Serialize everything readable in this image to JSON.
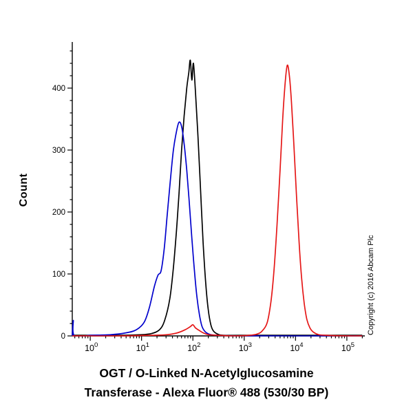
{
  "chart_data": {
    "type": "line",
    "title_line1": "OGT / O-Linked N-Acetylglucosamine",
    "title_line2": "Transferase - Alexa Fluor® 488 (530/30 BP)",
    "ylabel": "Count",
    "copyright": "Copyright (c) 2016 Abcam Plc",
    "x_scale": "log10",
    "x_tick_exponents": [
      0,
      1,
      2,
      3,
      4,
      5
    ],
    "xlim_log": [
      -0.35,
      5.35
    ],
    "y_ticks": [
      0,
      100,
      200,
      300,
      400
    ],
    "y_minor_step": 20,
    "ylim": [
      0,
      470
    ],
    "grid": false,
    "legend": "none",
    "axis_color": "#000000",
    "series": [
      {
        "name": "black-curve",
        "color": "#000000",
        "points": [
          [
            -0.35,
            1
          ],
          [
            0,
            1
          ],
          [
            0.6,
            1
          ],
          [
            1.0,
            2
          ],
          [
            1.2,
            4
          ],
          [
            1.35,
            10
          ],
          [
            1.45,
            25
          ],
          [
            1.55,
            60
          ],
          [
            1.62,
            110
          ],
          [
            1.68,
            170
          ],
          [
            1.73,
            230
          ],
          [
            1.78,
            300
          ],
          [
            1.83,
            355
          ],
          [
            1.88,
            400
          ],
          [
            1.92,
            425
          ],
          [
            1.95,
            445
          ],
          [
            1.98,
            413
          ],
          [
            2.01,
            440
          ],
          [
            2.05,
            395
          ],
          [
            2.1,
            320
          ],
          [
            2.15,
            235
          ],
          [
            2.2,
            150
          ],
          [
            2.25,
            85
          ],
          [
            2.3,
            42
          ],
          [
            2.35,
            18
          ],
          [
            2.4,
            8
          ],
          [
            2.48,
            3
          ],
          [
            2.6,
            1
          ],
          [
            3.0,
            1
          ],
          [
            4.0,
            1
          ],
          [
            5.0,
            1
          ],
          [
            5.3,
            1
          ]
        ]
      },
      {
        "name": "blue-curve",
        "color": "#0000cc",
        "points": [
          [
            -0.35,
            0
          ],
          [
            -0.33,
            25
          ],
          [
            -0.31,
            0
          ],
          [
            0,
            1
          ],
          [
            0.4,
            2
          ],
          [
            0.7,
            5
          ],
          [
            0.9,
            10
          ],
          [
            1.05,
            22
          ],
          [
            1.15,
            45
          ],
          [
            1.25,
            80
          ],
          [
            1.32,
            98
          ],
          [
            1.38,
            105
          ],
          [
            1.44,
            140
          ],
          [
            1.5,
            195
          ],
          [
            1.56,
            250
          ],
          [
            1.62,
            300
          ],
          [
            1.68,
            330
          ],
          [
            1.73,
            345
          ],
          [
            1.78,
            338
          ],
          [
            1.83,
            310
          ],
          [
            1.88,
            268
          ],
          [
            1.93,
            215
          ],
          [
            1.98,
            158
          ],
          [
            2.03,
            105
          ],
          [
            2.08,
            62
          ],
          [
            2.13,
            33
          ],
          [
            2.18,
            15
          ],
          [
            2.25,
            6
          ],
          [
            2.35,
            2
          ],
          [
            2.5,
            1
          ],
          [
            3.0,
            0
          ],
          [
            5.3,
            0
          ]
        ]
      },
      {
        "name": "red-curve",
        "color": "#e51616",
        "points": [
          [
            -0.35,
            0
          ],
          [
            0.5,
            0
          ],
          [
            1.2,
            1
          ],
          [
            1.5,
            2
          ],
          [
            1.7,
            5
          ],
          [
            1.85,
            10
          ],
          [
            1.95,
            15
          ],
          [
            2.0,
            18
          ],
          [
            2.05,
            13
          ],
          [
            2.12,
            9
          ],
          [
            2.2,
            5
          ],
          [
            2.3,
            2
          ],
          [
            2.5,
            1
          ],
          [
            2.8,
            0
          ],
          [
            3.1,
            1
          ],
          [
            3.25,
            3
          ],
          [
            3.35,
            8
          ],
          [
            3.45,
            22
          ],
          [
            3.52,
            55
          ],
          [
            3.58,
            105
          ],
          [
            3.64,
            180
          ],
          [
            3.7,
            270
          ],
          [
            3.75,
            350
          ],
          [
            3.8,
            410
          ],
          [
            3.84,
            437
          ],
          [
            3.88,
            420
          ],
          [
            3.92,
            378
          ],
          [
            3.97,
            305
          ],
          [
            4.02,
            225
          ],
          [
            4.07,
            150
          ],
          [
            4.12,
            92
          ],
          [
            4.17,
            52
          ],
          [
            4.22,
            27
          ],
          [
            4.28,
            13
          ],
          [
            4.35,
            6
          ],
          [
            4.45,
            2
          ],
          [
            4.6,
            1
          ],
          [
            5.0,
            0
          ],
          [
            5.3,
            0
          ]
        ]
      }
    ]
  }
}
